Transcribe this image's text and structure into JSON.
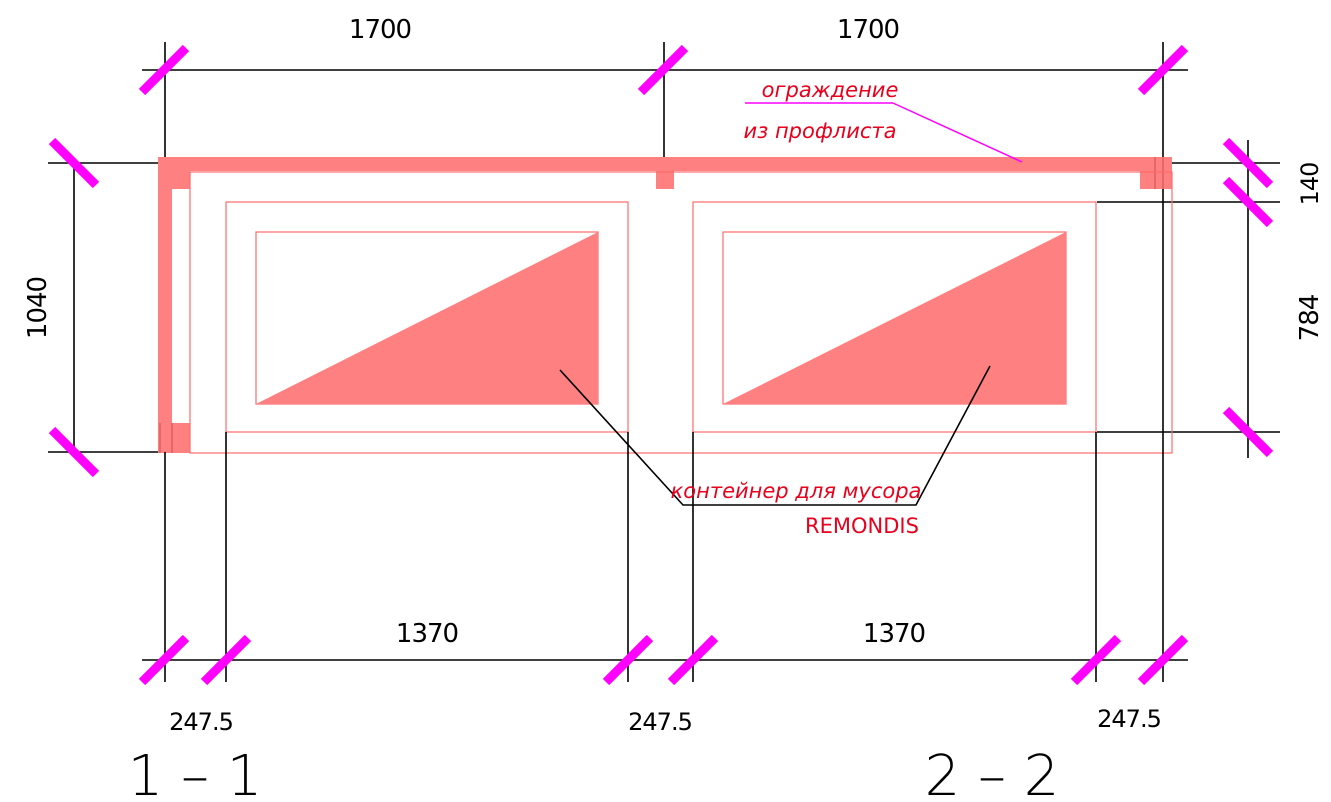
{
  "dimensions": {
    "top_left": "1700",
    "top_right": "1700",
    "left_height": "1040",
    "right_top": "140",
    "right_mid": "784",
    "bottom_left_span": "1370",
    "bottom_right_span": "1370",
    "gap_left": "247.5",
    "gap_mid": "247.5",
    "gap_right": "247.5"
  },
  "annotations": {
    "fence_line1": "ограждение",
    "fence_line2": "из профлиста",
    "container_line1": "контейнер для мусора",
    "container_line2": "REMONDIS"
  },
  "section_labels": {
    "left": "1 – 1",
    "right": "2 – 2"
  },
  "colors": {
    "fence": "#ff8080",
    "dimension_tick": "#ff00ff",
    "annotation_text": "#e8001c",
    "leader_magenta": "#ff00ff"
  }
}
